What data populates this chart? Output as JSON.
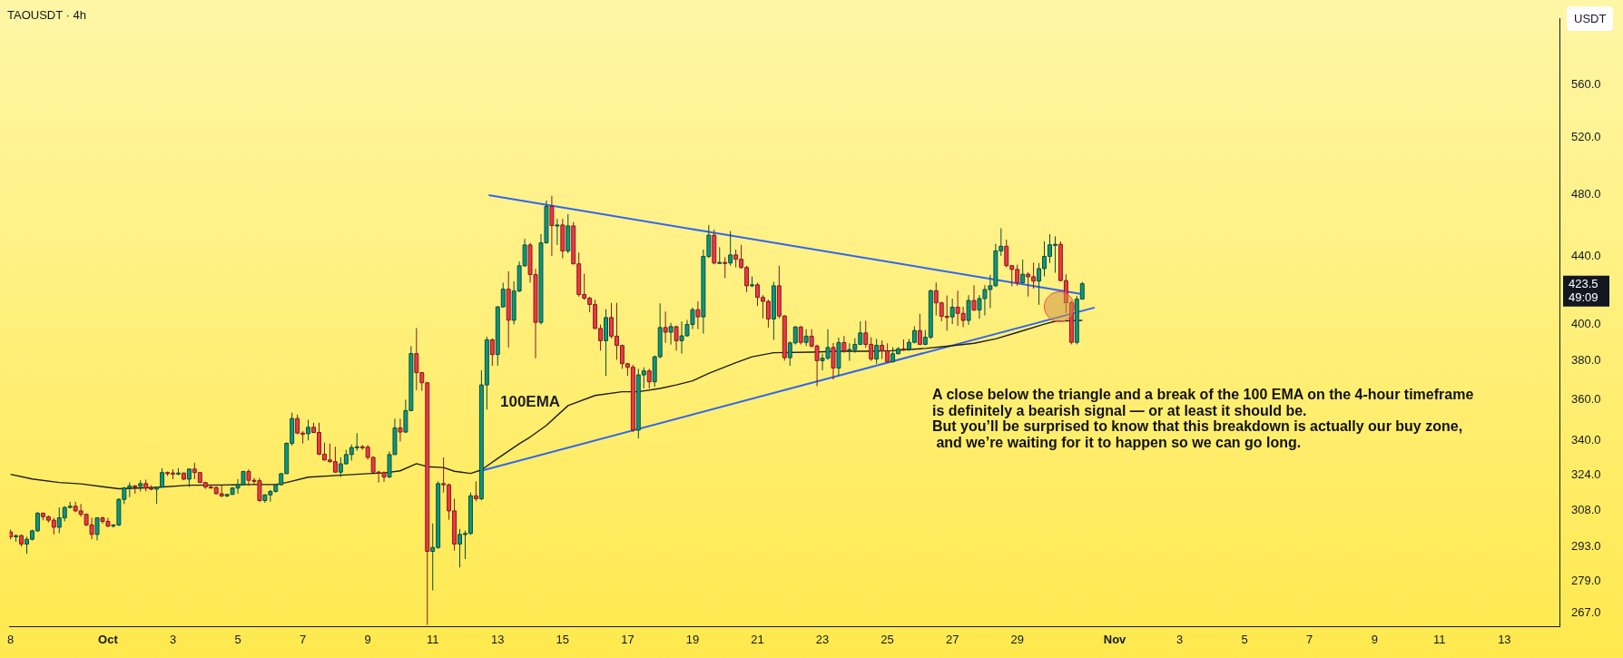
{
  "chart_data": {
    "type": "candlestick",
    "title": "TAOUSDT · 4h",
    "ylabel": "USDT",
    "log": "y",
    "xlim": [
      "--09-27T23:20",
      "--11-14T16:40"
    ],
    "ylim": [
      262,
      614
    ],
    "xticks": [
      {
        "value": "--09-28",
        "label": "8"
      },
      {
        "value": "--10-01",
        "label": "Oct"
      },
      {
        "value": "--10-03",
        "label": "3"
      },
      {
        "value": "--10-05",
        "label": "5"
      },
      {
        "value": "--10-07",
        "label": "7"
      },
      {
        "value": "--10-09",
        "label": "9"
      },
      {
        "value": "--10-11",
        "label": "11"
      },
      {
        "value": "--10-13",
        "label": "13"
      },
      {
        "value": "--10-15",
        "label": "15"
      },
      {
        "value": "--10-17",
        "label": "17"
      },
      {
        "value": "--10-19",
        "label": "19"
      },
      {
        "value": "--10-21",
        "label": "21"
      },
      {
        "value": "--10-23",
        "label": "23"
      },
      {
        "value": "--10-25",
        "label": "25"
      },
      {
        "value": "--10-27",
        "label": "27"
      },
      {
        "value": "--10-29",
        "label": "29"
      },
      {
        "value": "--11-01",
        "label": "Nov"
      },
      {
        "value": "--11-03",
        "label": "3"
      },
      {
        "value": "--11-05",
        "label": "5"
      },
      {
        "value": "--11-07",
        "label": "7"
      },
      {
        "value": "--11-09",
        "label": "9"
      },
      {
        "value": "--11-11",
        "label": "11"
      },
      {
        "value": "--11-13",
        "label": "13"
      }
    ],
    "yticks": [
      {
        "value": 267,
        "label": "267.0"
      },
      {
        "value": 279,
        "label": "279.0"
      },
      {
        "value": 293,
        "label": "293.0"
      },
      {
        "value": 308,
        "label": "308.0"
      },
      {
        "value": 324,
        "label": "324.0"
      },
      {
        "value": 340,
        "label": "340.0"
      },
      {
        "value": 360,
        "label": "360.0"
      },
      {
        "value": 380,
        "label": "380.0"
      },
      {
        "value": 400,
        "label": "400.0"
      },
      {
        "value": 440,
        "label": "440.0"
      },
      {
        "value": 480,
        "label": "480.0"
      },
      {
        "value": 520,
        "label": "520.0"
      },
      {
        "value": 560,
        "label": "560.0"
      }
    ],
    "series": [
      {
        "type": "line",
        "name": "100EMA",
        "color": "#1e1e1e",
        "x": [
          "--09-28T00:00",
          "--09-28T16:00",
          "--09-29T12:00",
          "--09-30T04:00",
          "--09-30T20:00",
          "--10-01T08:00",
          "--10-02T12:00",
          "--10-03T12:00",
          "--10-04T12:00",
          "--10-05T08:00",
          "--10-06T04:00",
          "--10-06T12:00",
          "--10-07T04:00",
          "--10-08T04:00",
          "--10-09T00:00",
          "--10-09T12:00",
          "--10-10T00:00",
          "--10-10T12:00",
          "--10-10T20:00",
          "--10-11T08:00",
          "--10-11T16:00",
          "--10-12T04:00",
          "--10-12T12:00",
          "--10-13T00:00",
          "--10-13T16:00",
          "--10-14T00:00",
          "--10-14T12:00",
          "--10-15T04:00",
          "--10-16T00:00",
          "--10-16T20:00",
          "--10-17T08:00",
          "--10-18T00:00",
          "--10-18T12:00",
          "--10-19T00:00",
          "--10-19T12:00",
          "--10-20T08:00",
          "--10-20T20:00",
          "--10-21T12:00",
          "--10-22T16:00",
          "--10-23T12:00",
          "--10-24T08:00",
          "--10-25T04:00",
          "--10-26T04:00",
          "--10-26T20:00",
          "--10-27T16:00",
          "--10-28T08:00",
          "--10-29T00:00",
          "--10-29T20:00",
          "--10-30T04:00",
          "--10-30T16:00",
          "--10-31T00:00"
        ],
        "values": [
          324.2,
          322.1,
          320.5,
          319.9,
          318.6,
          317.7,
          318.3,
          319.3,
          319.4,
          319.6,
          319.6,
          320.5,
          322.9,
          323.8,
          324.5,
          324.8,
          325.8,
          329.1,
          327.7,
          327.3,
          325.6,
          324.6,
          326.2,
          331.5,
          338.4,
          341.6,
          347.2,
          357,
          362.1,
          364,
          364,
          365.7,
          367.5,
          369.6,
          373.5,
          379.1,
          382.3,
          384.5,
          384.8,
          385.3,
          385.3,
          385.6,
          386.8,
          388,
          389.6,
          392,
          395.6,
          400.2,
          401.8,
          402.1,
          402.3
        ]
      },
      {
        "type": "line",
        "color": "#2f66f0",
        "x": [
          "--10-12T17:20",
          "--10-31T00:40"
        ],
        "values": [
          479.5,
          417.3
        ]
      },
      {
        "type": "line",
        "color": "#2f66f0",
        "x": [
          "--10-12T12:20",
          "--10-31T09:10"
        ],
        "values": [
          325.9,
          409.6
        ]
      },
      {
        "x": [
          "--09-28T00:00",
          "--09-28T04:00",
          "--09-28T08:00",
          "--09-28T12:00",
          "--09-28T16:00",
          "--09-28T20:00",
          "--09-29T00:00",
          "--09-29T04:00",
          "--09-29T08:00",
          "--09-29T12:00",
          "--09-29T16:00",
          "--09-29T20:00",
          "--09-30T00:00",
          "--09-30T04:00",
          "--09-30T08:00",
          "--09-30T12:00",
          "--09-30T16:00",
          "--09-30T20:00",
          "--10-01T00:00",
          "--10-01T04:00",
          "--10-01T08:00",
          "--10-01T12:00",
          "--10-01T16:00",
          "--10-01T20:00",
          "--10-02T00:00",
          "--10-02T04:00",
          "--10-02T08:00",
          "--10-02T12:00",
          "--10-02T16:00",
          "--10-02T20:00",
          "--10-03T00:00",
          "--10-03T04:00",
          "--10-03T08:00",
          "--10-03T12:00",
          "--10-03T16:00",
          "--10-03T20:00",
          "--10-04T00:00",
          "--10-04T04:00",
          "--10-04T08:00",
          "--10-04T12:00",
          "--10-04T16:00",
          "--10-04T20:00",
          "--10-05T00:00",
          "--10-05T04:00",
          "--10-05T08:00",
          "--10-05T12:00",
          "--10-05T16:00",
          "--10-05T20:00",
          "--10-06T00:00",
          "--10-06T04:00",
          "--10-06T08:00",
          "--10-06T12:00",
          "--10-06T16:00",
          "--10-06T20:00",
          "--10-07T00:00",
          "--10-07T04:00",
          "--10-07T08:00",
          "--10-07T12:00",
          "--10-07T16:00",
          "--10-07T20:00",
          "--10-08T00:00",
          "--10-08T04:00",
          "--10-08T08:00",
          "--10-08T12:00",
          "--10-08T16:00",
          "--10-08T20:00",
          "--10-09T00:00",
          "--10-09T04:00",
          "--10-09T08:00",
          "--10-09T12:00",
          "--10-09T16:00",
          "--10-09T20:00",
          "--10-10T00:00",
          "--10-10T04:00",
          "--10-10T08:00",
          "--10-10T12:00",
          "--10-10T16:00",
          "--10-10T20:00",
          "--10-11T00:00",
          "--10-11T04:00",
          "--10-11T08:00",
          "--10-11T12:00",
          "--10-11T16:00",
          "--10-11T20:00",
          "--10-12T00:00",
          "--10-12T04:00",
          "--10-12T08:00",
          "--10-12T12:00",
          "--10-12T16:00",
          "--10-12T20:00",
          "--10-13T00:00",
          "--10-13T04:00",
          "--10-13T08:00",
          "--10-13T12:00",
          "--10-13T16:00",
          "--10-13T20:00",
          "--10-14T00:00",
          "--10-14T04:00",
          "--10-14T08:00",
          "--10-14T12:00",
          "--10-14T16:00",
          "--10-14T20:00",
          "--10-15T00:00",
          "--10-15T04:00",
          "--10-15T08:00",
          "--10-15T12:00",
          "--10-15T16:00",
          "--10-15T20:00",
          "--10-16T00:00",
          "--10-16T04:00",
          "--10-16T08:00",
          "--10-16T12:00",
          "--10-16T16:00",
          "--10-16T20:00",
          "--10-17T00:00",
          "--10-17T04:00",
          "--10-17T08:00",
          "--10-17T12:00",
          "--10-17T16:00",
          "--10-17T20:00",
          "--10-18T00:00",
          "--10-18T04:00",
          "--10-18T08:00",
          "--10-18T12:00",
          "--10-18T16:00",
          "--10-18T20:00",
          "--10-19T00:00",
          "--10-19T04:00",
          "--10-19T08:00",
          "--10-19T12:00",
          "--10-19T16:00",
          "--10-19T20:00",
          "--10-20T00:00",
          "--10-20T04:00",
          "--10-20T08:00",
          "--10-20T12:00",
          "--10-20T16:00",
          "--10-20T20:00",
          "--10-21T00:00",
          "--10-21T04:00",
          "--10-21T08:00",
          "--10-21T12:00",
          "--10-21T16:00",
          "--10-21T20:00",
          "--10-22T00:00",
          "--10-22T04:00",
          "--10-22T08:00",
          "--10-22T12:00",
          "--10-22T16:00",
          "--10-22T20:00",
          "--10-23T00:00",
          "--10-23T04:00",
          "--10-23T08:00",
          "--10-23T12:00",
          "--10-23T16:00",
          "--10-23T20:00",
          "--10-24T00:00",
          "--10-24T04:00",
          "--10-24T08:00",
          "--10-24T12:00",
          "--10-24T16:00",
          "--10-24T20:00",
          "--10-25T00:00",
          "--10-25T04:00",
          "--10-25T08:00",
          "--10-25T12:00",
          "--10-25T16:00",
          "--10-25T20:00",
          "--10-26T00:00",
          "--10-26T04:00",
          "--10-26T08:00",
          "--10-26T12:00",
          "--10-26T16:00",
          "--10-26T20:00",
          "--10-27T00:00",
          "--10-27T04:00",
          "--10-27T08:00",
          "--10-27T12:00",
          "--10-27T16:00",
          "--10-27T20:00",
          "--10-28T00:00",
          "--10-28T04:00",
          "--10-28T08:00",
          "--10-28T12:00",
          "--10-28T16:00",
          "--10-28T20:00",
          "--10-29T00:00",
          "--10-29T04:00",
          "--10-29T08:00",
          "--10-29T12:00",
          "--10-29T16:00",
          "--10-29T20:00",
          "--10-30T00:00",
          "--10-30T04:00",
          "--10-30T08:00",
          "--10-30T12:00",
          "--10-30T16:00",
          "--10-30T20:00",
          "--10-31T00:00"
        ],
        "ohlc": [
          [
            299,
            300,
            296,
            297
          ],
          [
            297,
            298,
            295,
            297.5
          ],
          [
            297.5,
            298,
            293,
            294
          ],
          [
            294,
            297,
            290,
            296
          ],
          [
            296,
            300,
            295.5,
            299.5
          ],
          [
            299.5,
            307.5,
            299,
            307
          ],
          [
            307,
            307.3,
            304,
            305.5
          ],
          [
            305.5,
            306,
            303,
            304
          ],
          [
            304,
            305,
            298,
            301
          ],
          [
            301,
            309.5,
            298.5,
            305
          ],
          [
            305,
            310,
            303.5,
            309.5
          ],
          [
            309.5,
            312,
            309,
            310
          ],
          [
            310,
            312,
            307.5,
            308
          ],
          [
            308,
            311,
            305.5,
            306.5
          ],
          [
            306.5,
            306.8,
            301.5,
            302
          ],
          [
            302,
            305,
            296,
            298
          ],
          [
            298,
            305.3,
            295.5,
            305
          ],
          [
            305,
            305.5,
            302.5,
            303.5
          ],
          [
            303.5,
            305,
            301,
            301.5
          ],
          [
            301.8,
            302.2,
            300.8,
            302
          ],
          [
            302,
            313.5,
            301.5,
            313
          ],
          [
            313,
            318.5,
            311,
            318
          ],
          [
            318,
            320.5,
            314,
            319
          ],
          [
            319,
            319.3,
            315.5,
            318.8
          ],
          [
            318.8,
            321.5,
            316.5,
            320
          ],
          [
            320,
            321.8,
            316.5,
            318
          ],
          [
            318,
            319.3,
            317,
            317.5
          ],
          [
            317.5,
            318.5,
            311,
            318.5
          ],
          [
            318.5,
            327,
            318.2,
            325
          ],
          [
            325,
            325.5,
            323.5,
            324.8
          ],
          [
            324.8,
            326.5,
            322,
            324.5
          ],
          [
            324.5,
            327,
            323.8,
            324.8
          ],
          [
            324.8,
            324.9,
            321.5,
            322
          ],
          [
            322,
            326.8,
            318.5,
            326.6
          ],
          [
            326.6,
            329.5,
            322,
            325
          ],
          [
            325,
            325.1,
            320.3,
            320.5
          ],
          [
            320.5,
            320.6,
            317.6,
            318.5
          ],
          [
            318.5,
            319.5,
            317.8,
            318.3
          ],
          [
            318.3,
            318.8,
            315.2,
            315.5
          ],
          [
            315.5,
            319.3,
            314,
            314.5
          ],
          [
            314.5,
            315.5,
            314,
            315.2
          ],
          [
            315.2,
            318.5,
            315,
            318
          ],
          [
            318,
            322,
            315.5,
            319.5
          ],
          [
            319.5,
            325.8,
            319.2,
            325.5
          ],
          [
            325.5,
            326.5,
            319,
            321.5
          ],
          [
            321.5,
            322.5,
            319.5,
            321.3
          ],
          [
            321.3,
            322.5,
            312,
            312.5
          ],
          [
            312.5,
            315.2,
            311.5,
            315
          ],
          [
            315,
            317.2,
            312,
            316.5
          ],
          [
            316.5,
            319.8,
            316,
            319.5
          ],
          [
            319.5,
            324.8,
            319.2,
            324.5
          ],
          [
            324.5,
            339,
            324.4,
            338.6
          ],
          [
            338.6,
            353.5,
            337.5,
            350.6
          ],
          [
            350.6,
            352.5,
            343,
            343.5
          ],
          [
            343.5,
            344.5,
            338.5,
            343.2
          ],
          [
            343.2,
            350,
            340,
            346.3
          ],
          [
            346.3,
            348.5,
            343.5,
            343.8
          ],
          [
            343.8,
            348.5,
            333,
            333.5
          ],
          [
            333.5,
            339,
            330.5,
            330.8
          ],
          [
            330.8,
            338.5,
            329.5,
            330
          ],
          [
            330,
            337,
            325,
            325.2
          ],
          [
            325.2,
            332,
            323,
            329
          ],
          [
            329,
            335.5,
            328.8,
            333.3
          ],
          [
            333.3,
            338,
            330.5,
            336.6
          ],
          [
            336.6,
            343.5,
            335,
            337
          ],
          [
            337,
            337.8,
            335.5,
            336.8
          ],
          [
            336.8,
            337.8,
            331,
            332
          ],
          [
            332,
            332.5,
            325,
            325.2
          ],
          [
            325.2,
            325.8,
            320.5,
            325
          ],
          [
            325,
            325.5,
            320.8,
            323
          ],
          [
            323,
            334.8,
            322.5,
            333.3
          ],
          [
            333.3,
            350.5,
            333.2,
            346
          ],
          [
            346,
            350.5,
            339.5,
            344
          ],
          [
            344,
            360,
            343.5,
            354.5
          ],
          [
            354.5,
            388,
            354.2,
            384
          ],
          [
            384,
            398,
            364.8,
            373.9
          ],
          [
            373.9,
            374,
            364.5,
            368.6
          ],
          [
            368.6,
            369,
            262.5,
            291
          ],
          [
            291,
            302.6,
            275.5,
            292.6
          ],
          [
            292.6,
            321,
            292,
            320
          ],
          [
            320,
            332,
            316,
            319.5
          ],
          [
            319.5,
            320,
            304.2,
            308
          ],
          [
            308,
            313.3,
            291.3,
            294
          ],
          [
            294,
            300.3,
            284.5,
            298
          ],
          [
            298,
            299.6,
            287.9,
            298.4
          ],
          [
            298.4,
            316,
            297.8,
            314.6
          ],
          [
            314.6,
            321,
            312.2,
            313.3
          ],
          [
            313.3,
            375.1,
            312.6,
            367.5
          ],
          [
            367.5,
            393.2,
            355,
            391.5
          ],
          [
            391.5,
            392.3,
            377.5,
            383.5
          ],
          [
            383.5,
            410.5,
            377.5,
            410
          ],
          [
            410,
            424.1,
            409.6,
            420.3
          ],
          [
            420.3,
            431,
            387.3,
            402.4
          ],
          [
            402.4,
            425,
            400,
            419.2
          ],
          [
            419.2,
            436.9,
            418.6,
            434.3
          ],
          [
            434.3,
            451,
            433.8,
            447.2
          ],
          [
            447.2,
            448.5,
            424.1,
            429
          ],
          [
            429,
            432.4,
            381.5,
            401.2
          ],
          [
            401.2,
            454,
            400,
            448.5
          ],
          [
            448.5,
            475.9,
            448,
            472
          ],
          [
            472,
            479,
            440.3,
            459.5
          ],
          [
            459.5,
            463.8,
            447.2,
            459.9
          ],
          [
            459.9,
            463.8,
            438.9,
            443.4
          ],
          [
            443.4,
            467,
            442,
            459.3
          ],
          [
            459.3,
            461.8,
            435.2,
            435.5
          ],
          [
            435.5,
            442.5,
            415.9,
            417.2
          ],
          [
            417.2,
            429.5,
            414.1,
            415
          ],
          [
            415,
            415.9,
            406.9,
            411.4
          ],
          [
            411.4,
            414.1,
            397.4,
            397.8
          ],
          [
            397.8,
            400,
            385.6,
            391
          ],
          [
            391,
            408.7,
            372.2,
            403.9
          ],
          [
            403.9,
            412.3,
            392.3,
            393.5
          ],
          [
            393.5,
            412.3,
            380.7,
            388.4
          ],
          [
            388.4,
            388.9,
            375.9,
            378.6
          ],
          [
            378.6,
            379,
            372.2,
            376.7
          ],
          [
            376.7,
            378,
            344.1,
            344.9
          ],
          [
            344.9,
            375.9,
            340.9,
            372.7
          ],
          [
            372.7,
            376.7,
            365.7,
            374.8
          ],
          [
            374.8,
            375.9,
            365.7,
            369.1
          ],
          [
            369.1,
            383,
            366.5,
            382.3
          ],
          [
            382.3,
            412,
            381.5,
            398.3
          ],
          [
            398.3,
            407.3,
            389.8,
            395.7
          ],
          [
            395.7,
            400.9,
            388.9,
            398.8
          ],
          [
            398.8,
            399.1,
            385.6,
            391
          ],
          [
            391,
            401.7,
            384,
            393.7
          ],
          [
            393.7,
            402.6,
            393.2,
            400
          ],
          [
            400,
            409.6,
            397.4,
            408.4
          ],
          [
            408.4,
            413.2,
            397.4,
            404.3
          ],
          [
            404.3,
            444.3,
            394.9,
            440.1
          ],
          [
            440.1,
            459.9,
            438.9,
            453.4
          ],
          [
            453.4,
            456.9,
            435.2,
            436
          ],
          [
            436,
            445.8,
            435.5,
            436.4
          ],
          [
            436.4,
            439.6,
            426.9,
            436
          ],
          [
            436,
            456,
            434.3,
            441
          ],
          [
            441,
            444.3,
            433.3,
            438.3
          ],
          [
            438.3,
            447.2,
            432.4,
            433.3
          ],
          [
            433.3,
            434.3,
            418.6,
            422.3
          ],
          [
            422.3,
            427.8,
            421.5,
            422.9
          ],
          [
            422.9,
            424.1,
            410.5,
            415.5
          ],
          [
            415.5,
            416.8,
            403.4,
            413.2
          ],
          [
            413.2,
            414.1,
            398.3,
            403.1
          ],
          [
            403.1,
            424.7,
            391.5,
            422.3
          ],
          [
            422.3,
            434.3,
            403.4,
            404.8
          ],
          [
            404.8,
            405.2,
            380.2,
            381.8
          ],
          [
            381.8,
            390.6,
            377.5,
            389.8
          ],
          [
            389.8,
            399.1,
            388.9,
            398.6
          ],
          [
            398.6,
            399.1,
            388.9,
            390.1
          ],
          [
            390.1,
            397.4,
            388.1,
            393.5
          ],
          [
            393.5,
            397.4,
            387.3,
            388.1
          ],
          [
            388.1,
            388.9,
            366.8,
            380.2
          ],
          [
            380.2,
            384,
            375.1,
            381.5
          ],
          [
            381.5,
            397.4,
            380.7,
            387.3
          ],
          [
            387.3,
            389.8,
            370.3,
            376.3
          ],
          [
            376.3,
            392.7,
            372.2,
            390
          ],
          [
            390,
            393.6,
            384.4,
            385.5
          ],
          [
            385.5,
            389.6,
            380.1,
            386.2
          ],
          [
            386.2,
            392.4,
            384.4,
            389
          ],
          [
            389,
            401.8,
            388.8,
            395.3
          ],
          [
            395.3,
            402.1,
            387.1,
            389
          ],
          [
            389,
            392.9,
            380.1,
            381.1
          ],
          [
            381.1,
            392,
            378.5,
            388.5
          ],
          [
            388.5,
            391.2,
            381.1,
            385.5
          ],
          [
            385.5,
            389.6,
            379.3,
            379.6
          ],
          [
            379.6,
            387.5,
            379.3,
            383.9
          ],
          [
            383.9,
            387.5,
            383.7,
            386.6
          ],
          [
            386.6,
            391.7,
            385.5,
            386.3
          ],
          [
            386.3,
            392,
            385.5,
            390.1
          ],
          [
            390.1,
            399,
            389.6,
            396.6
          ],
          [
            396.6,
            406,
            388.8,
            389
          ],
          [
            389,
            396.9,
            388.5,
            392.9
          ],
          [
            392.9,
            420.1,
            392,
            419.4
          ],
          [
            419.4,
            424.3,
            405.1,
            412.3
          ],
          [
            412.3,
            413,
            401.8,
            404.6
          ],
          [
            404.6,
            416.6,
            396.6,
            404.3
          ],
          [
            404.3,
            414.8,
            400.2,
            409.8
          ],
          [
            409.8,
            419.4,
            399.3,
            406.3
          ],
          [
            406.3,
            410.1,
            398.5,
            402.3
          ],
          [
            402.3,
            416.8,
            399.8,
            413.7
          ],
          [
            413.7,
            422.7,
            407.7,
            408.2
          ],
          [
            408.2,
            416.8,
            403.2,
            414.8
          ],
          [
            414.8,
            422.7,
            405.1,
            420.1
          ],
          [
            420.1,
            428.8,
            409.3,
            422.3
          ],
          [
            422.3,
            447.9,
            421.8,
            443.5
          ],
          [
            443.5,
            457.8,
            440.4,
            446.4
          ],
          [
            446.4,
            450.5,
            433.4,
            434.4
          ],
          [
            434.4,
            434.7,
            422,
            432.1
          ],
          [
            432.1,
            435,
            422.3,
            424.1
          ],
          [
            424.1,
            438.1,
            423.8,
            429.2
          ],
          [
            429.2,
            430.4,
            416,
            427.7
          ],
          [
            427.7,
            436.3,
            420.6,
            425.1
          ],
          [
            425.1,
            436,
            411.2,
            432.6
          ],
          [
            432.6,
            449.5,
            427.9,
            440.1
          ],
          [
            440.1,
            454,
            436,
            447.3
          ],
          [
            447.3,
            452.6,
            430.1,
            447.6
          ],
          [
            447.6,
            449.4,
            425.1,
            425.4
          ],
          [
            425.4,
            429.2,
            406.5,
            412.4
          ],
          [
            412.4,
            413.7,
            389,
            390.1
          ],
          [
            390.1,
            416.3,
            389,
            414.5
          ],
          [
            414.5,
            424.6,
            414.5,
            423.5
          ]
        ]
      }
    ],
    "annotations": [
      "A close below the triangle and a break of the 100 EMA on the 4-hour timeframe\nis definitely a bearish signal — or at least it should be.\nBut you’ll be surprised to know that this breakdown is actually our buy zone,\n and we’re waiting for it to happen so we can go long.",
      "423.5\n49:09"
    ]
  }
}
